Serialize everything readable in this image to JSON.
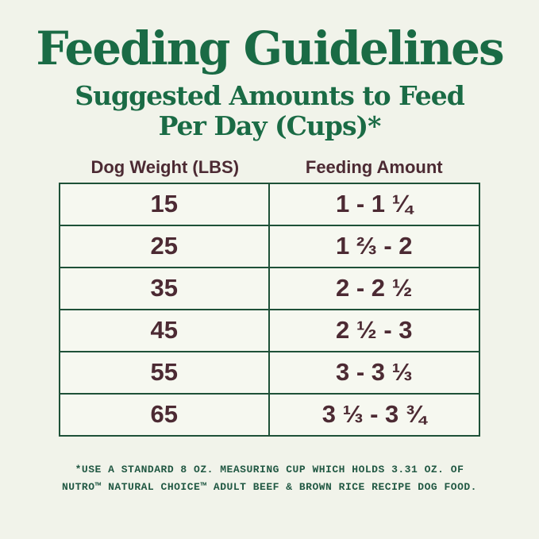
{
  "heading": {
    "title": "Feeding Guidelines",
    "subtitle_line1": "Suggested Amounts to Feed",
    "subtitle_line2": "Per Day (Cups)*"
  },
  "table": {
    "headers": [
      "Dog Weight (LBS)",
      "Feeding Amount"
    ],
    "rows": [
      {
        "weight": "15",
        "amount": "1 - 1 ¼"
      },
      {
        "weight": "25",
        "amount": "1 ⅔ - 2"
      },
      {
        "weight": "35",
        "amount": "2 - 2 ½"
      },
      {
        "weight": "45",
        "amount": "2 ½ - 3"
      },
      {
        "weight": "55",
        "amount": "3 - 3 ⅓"
      },
      {
        "weight": "65",
        "amount": "3 ⅓ - 3 ¾"
      }
    ]
  },
  "footnote": {
    "line1": "*USE A STANDARD 8 OZ. MEASURING CUP WHICH HOLDS 3.31 OZ. OF",
    "line2": "NUTRO™ NATURAL CHOICE™ ADULT BEEF & BROWN RICE RECIPE DOG FOOD."
  },
  "colors": {
    "background": "#f1f3ea",
    "cell_background": "#f6f8f0",
    "heading_green": "#1a6b45",
    "border_green": "#1e5138",
    "text_brown": "#4c2a33",
    "footnote_green": "#215843"
  }
}
